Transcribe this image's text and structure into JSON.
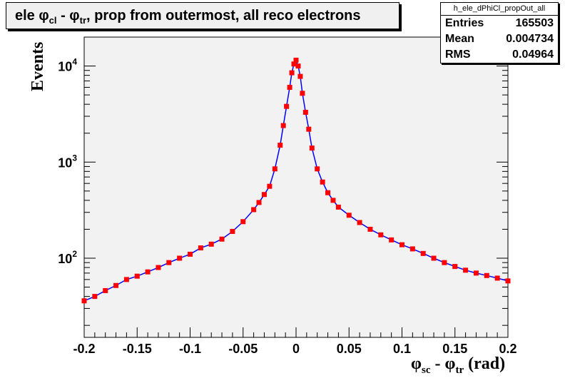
{
  "title": {
    "prefix": "ele ",
    "phi1": "φ",
    "sub1": "cl",
    "mid": " - ",
    "phi2": "φ",
    "sub2": "tr",
    "suffix": ", prop from outermost, all reco electrons"
  },
  "stats": {
    "name": "h_ele_dPhiCl_propOut_all",
    "rows": [
      {
        "label": "Entries",
        "value": "165503"
      },
      {
        "label": "Mean",
        "value": "0.004734"
      },
      {
        "label": "RMS",
        "value": "0.04964"
      }
    ]
  },
  "colors": {
    "frame_fill": "#f2f2f2",
    "marker": "#ff0000",
    "line": "#0000ff"
  },
  "chart_data": {
    "type": "scatter",
    "xlabel": {
      "phi1": "φ",
      "sub1": "sc",
      "mid": " - ",
      "phi2": "φ",
      "sub2": "tr",
      "unit": " (rad)"
    },
    "ylabel": "Events",
    "xlim": [
      -0.2,
      0.2
    ],
    "ylim": [
      15,
      20000
    ],
    "yscale": "log",
    "x_ticks": [
      "-0.2",
      "-0.15",
      "-0.1",
      "-0.05",
      "0",
      "0.05",
      "0.1",
      "0.15",
      "0.2"
    ],
    "y_ticks": [
      {
        "base": "10",
        "exp": "2",
        "value": 100
      },
      {
        "base": "10",
        "exp": "3",
        "value": 1000
      },
      {
        "base": "10",
        "exp": "4",
        "value": 10000
      }
    ],
    "series": [
      {
        "x": [
          -0.2,
          -0.19,
          -0.18,
          -0.17,
          -0.16,
          -0.15,
          -0.14,
          -0.13,
          -0.12,
          -0.11,
          -0.1,
          -0.09,
          -0.08,
          -0.07,
          -0.06,
          -0.05,
          -0.04,
          -0.035,
          -0.03,
          -0.025,
          -0.02,
          -0.015,
          -0.012,
          -0.009,
          -0.006,
          -0.004,
          -0.002,
          0,
          0.002,
          0.004,
          0.006,
          0.009,
          0.012,
          0.015,
          0.02,
          0.025,
          0.03,
          0.035,
          0.04,
          0.05,
          0.06,
          0.07,
          0.08,
          0.09,
          0.1,
          0.11,
          0.12,
          0.13,
          0.14,
          0.15,
          0.16,
          0.17,
          0.18,
          0.19,
          0.2
        ],
        "y": [
          36,
          40,
          46,
          52,
          60,
          65,
          72,
          80,
          90,
          100,
          110,
          128,
          140,
          158,
          190,
          240,
          320,
          380,
          460,
          560,
          850,
          1500,
          2400,
          3800,
          6000,
          8500,
          10500,
          11500,
          10000,
          7800,
          5200,
          3300,
          2200,
          1400,
          850,
          620,
          480,
          400,
          340,
          280,
          235,
          200,
          175,
          155,
          138,
          125,
          112,
          100,
          90,
          82,
          75,
          70,
          66,
          62,
          58
        ]
      }
    ]
  }
}
